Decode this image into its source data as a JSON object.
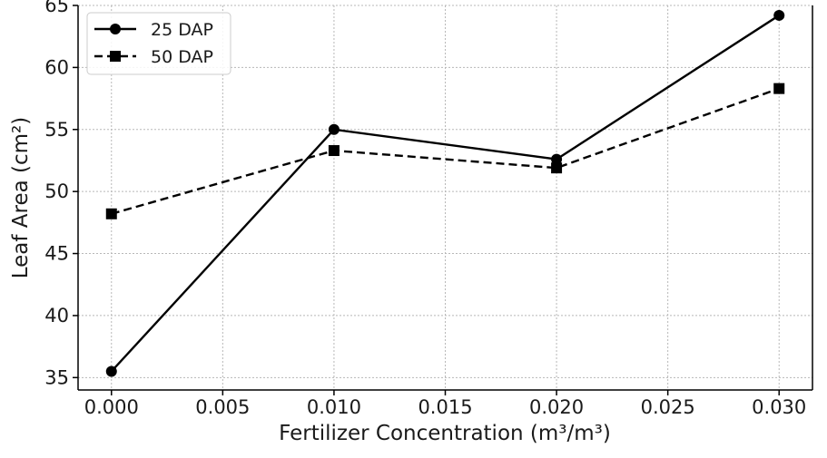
{
  "chart_data": {
    "type": "line",
    "xlabel": "Fertilizer Concentration (m³/m³)",
    "ylabel": "Leaf Area (cm²)",
    "xlim": [
      -0.0015,
      0.0315
    ],
    "ylim": [
      34,
      65
    ],
    "xticks": [
      0.0,
      0.005,
      0.01,
      0.015,
      0.02,
      0.025,
      0.03
    ],
    "xtick_labels": [
      "0.000",
      "0.005",
      "0.010",
      "0.015",
      "0.020",
      "0.025",
      "0.030"
    ],
    "yticks": [
      35,
      40,
      45,
      50,
      55,
      60,
      65
    ],
    "ytick_labels": [
      "35",
      "40",
      "45",
      "50",
      "55",
      "60",
      "65"
    ],
    "grid": true,
    "legend_position": "top-left",
    "x": [
      0.0,
      0.01,
      0.02,
      0.03
    ],
    "series": [
      {
        "name": "25 DAP",
        "values": [
          35.5,
          55.0,
          52.6,
          64.2
        ],
        "marker": "circle",
        "linestyle": "solid",
        "color": "#000000"
      },
      {
        "name": "50 DAP",
        "values": [
          48.2,
          53.3,
          51.9,
          58.3
        ],
        "marker": "square",
        "linestyle": "dashed",
        "color": "#000000"
      }
    ]
  }
}
